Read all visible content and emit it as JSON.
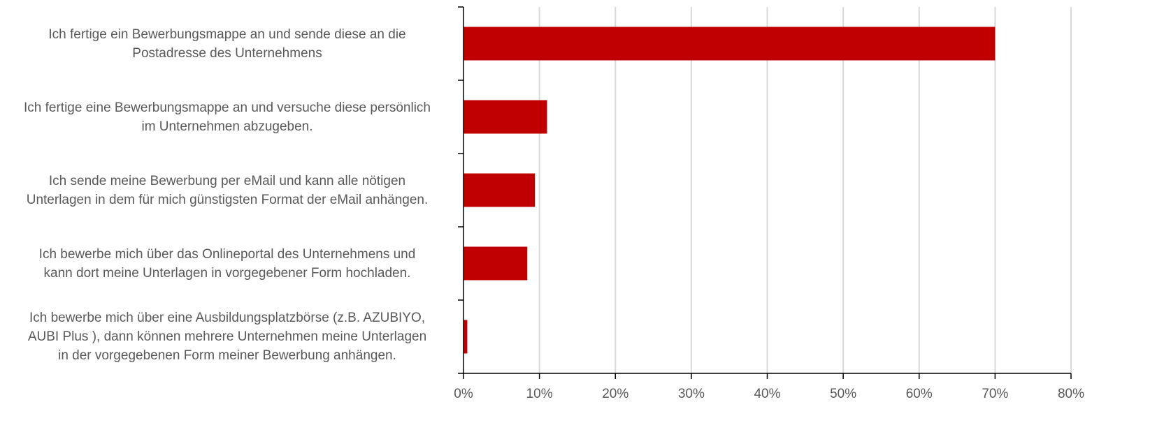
{
  "chart_data": {
    "type": "bar",
    "orientation": "horizontal",
    "categories": [
      "Ich fertige ein Bewerbungsmappe an und sende diese an die\nPostadresse des Unternehmens",
      "Ich fertige eine Bewerbungsmappe an und versuche diese persönlich\nim Unternehmen abzugeben.",
      "Ich sende meine Bewerbung per eMail und kann alle nötigen\nUnterlagen in dem für mich günstigsten Format der eMail anhängen.",
      "Ich bewerbe mich über das Onlineportal des Unternehmens und\nkann dort meine Unterlagen in vorgegebener Form hochladen.",
      "Ich bewerbe mich über eine Ausbildungsplatzbörse (z.B. AZUBIYO,\nAUBI Plus ), dann können mehrere Unternehmen meine Unterlagen\nin der vorgegebenen Form meiner Bewerbung anhängen."
    ],
    "values": [
      70,
      11,
      9.4,
      8.4,
      0.5
    ],
    "color": "#c00000",
    "xlim": [
      0,
      80
    ],
    "xticks": [
      {
        "value": 0,
        "label": "0%"
      },
      {
        "value": 10,
        "label": "10%"
      },
      {
        "value": 20,
        "label": "20%"
      },
      {
        "value": 30,
        "label": "30%"
      },
      {
        "value": 40,
        "label": "40%"
      },
      {
        "value": 50,
        "label": "50%"
      },
      {
        "value": 60,
        "label": "60%"
      },
      {
        "value": 70,
        "label": "70%"
      },
      {
        "value": 80,
        "label": "80%"
      }
    ],
    "grid": true
  }
}
